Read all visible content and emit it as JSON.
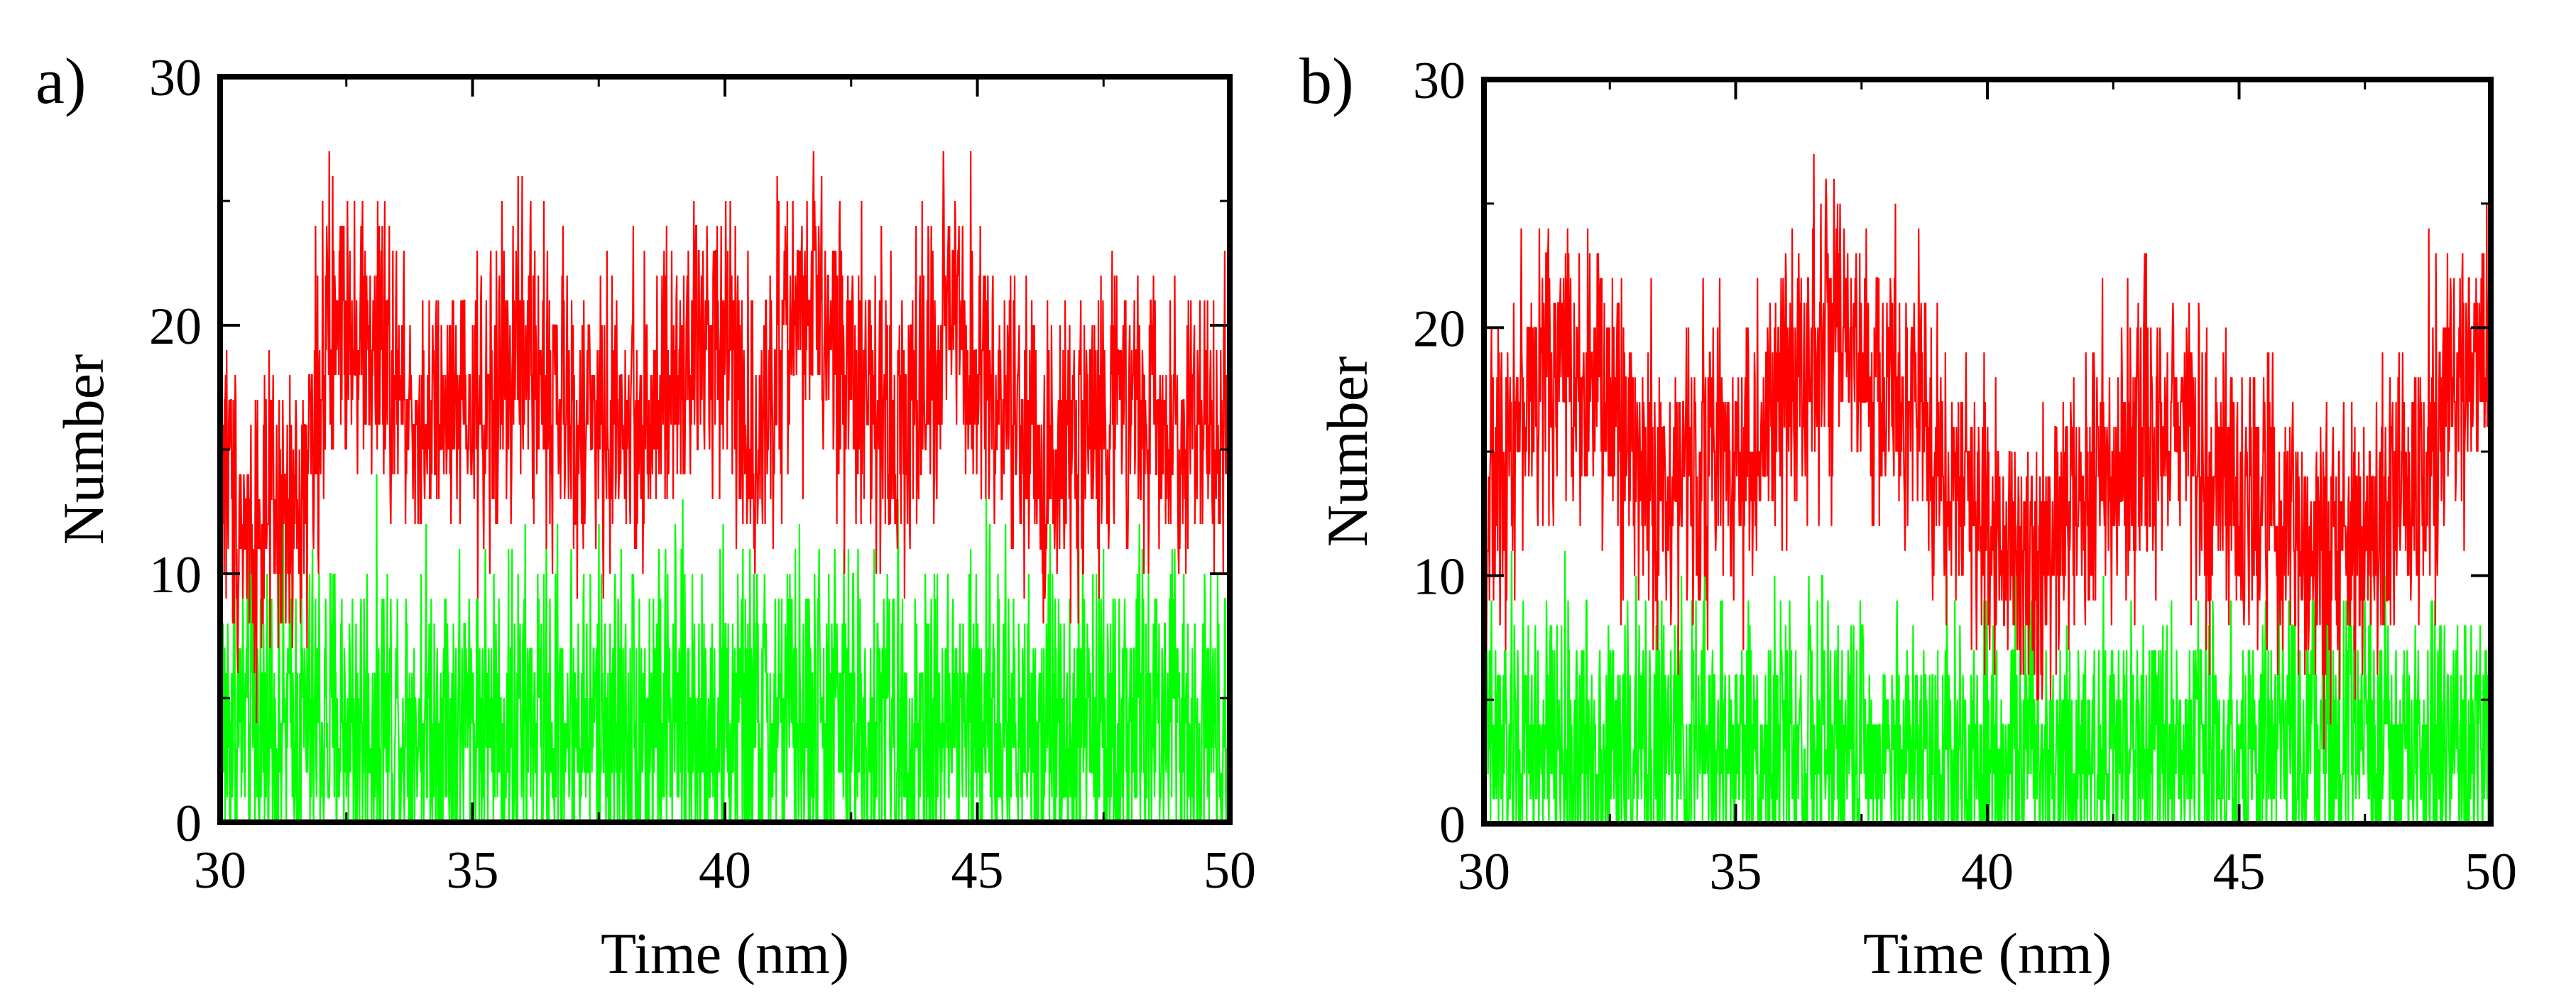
{
  "chart_data": [
    {
      "panel_label": "a)",
      "type": "line",
      "xlabel": "Time (nm)",
      "ylabel": "Number",
      "xlim": [
        30,
        50
      ],
      "ylim": [
        0,
        30
      ],
      "x_ticks": [
        "30",
        "35",
        "40",
        "45",
        "50"
      ],
      "y_ticks": [
        "0",
        "10",
        "20",
        "30"
      ],
      "grid": false,
      "legend": "none",
      "series": [
        {
          "name": "red series",
          "color": "#ff0000",
          "noise_amplitude": 3,
          "trend": [
            {
              "x": 30.0,
              "y": 15
            },
            {
              "x": 30.5,
              "y": 12
            },
            {
              "x": 31.5,
              "y": 12
            },
            {
              "x": 32.0,
              "y": 18
            },
            {
              "x": 32.5,
              "y": 21
            },
            {
              "x": 33.0,
              "y": 19
            },
            {
              "x": 34.0,
              "y": 16
            },
            {
              "x": 35.0,
              "y": 16
            },
            {
              "x": 36.0,
              "y": 19
            },
            {
              "x": 37.0,
              "y": 16
            },
            {
              "x": 38.0,
              "y": 16
            },
            {
              "x": 39.0,
              "y": 17
            },
            {
              "x": 40.0,
              "y": 21
            },
            {
              "x": 40.5,
              "y": 15
            },
            {
              "x": 41.5,
              "y": 21
            },
            {
              "x": 42.5,
              "y": 18
            },
            {
              "x": 43.5,
              "y": 16
            },
            {
              "x": 44.5,
              "y": 20
            },
            {
              "x": 45.5,
              "y": 16
            },
            {
              "x": 46.5,
              "y": 14
            },
            {
              "x": 47.5,
              "y": 17
            },
            {
              "x": 48.5,
              "y": 16
            },
            {
              "x": 49.5,
              "y": 15
            },
            {
              "x": 50.0,
              "y": 18
            }
          ]
        },
        {
          "name": "green series",
          "color": "#00ff00",
          "noise_amplitude": 3.5,
          "trend": [
            {
              "x": 30.0,
              "y": 4
            },
            {
              "x": 40.0,
              "y": 4
            },
            {
              "x": 50.0,
              "y": 4
            }
          ]
        }
      ]
    },
    {
      "panel_label": "b)",
      "type": "line",
      "xlabel": "Time (nm)",
      "ylabel": "Number",
      "xlim": [
        30,
        50
      ],
      "ylim": [
        0,
        30
      ],
      "x_ticks": [
        "30",
        "35",
        "40",
        "45",
        "50"
      ],
      "y_ticks": [
        "0",
        "10",
        "20",
        "30"
      ],
      "grid": false,
      "legend": "none",
      "series": [
        {
          "name": "red series",
          "color": "#ff0000",
          "noise_amplitude": 3,
          "trend": [
            {
              "x": 30.0,
              "y": 12
            },
            {
              "x": 30.5,
              "y": 16
            },
            {
              "x": 31.5,
              "y": 19
            },
            {
              "x": 32.5,
              "y": 17
            },
            {
              "x": 33.5,
              "y": 13
            },
            {
              "x": 34.5,
              "y": 15
            },
            {
              "x": 35.5,
              "y": 15
            },
            {
              "x": 36.5,
              "y": 20
            },
            {
              "x": 37.5,
              "y": 18
            },
            {
              "x": 38.5,
              "y": 17
            },
            {
              "x": 39.5,
              "y": 13
            },
            {
              "x": 40.5,
              "y": 12
            },
            {
              "x": 41.0,
              "y": 10
            },
            {
              "x": 42.0,
              "y": 14
            },
            {
              "x": 43.0,
              "y": 15
            },
            {
              "x": 44.0,
              "y": 17
            },
            {
              "x": 44.5,
              "y": 13
            },
            {
              "x": 45.5,
              "y": 13
            },
            {
              "x": 46.5,
              "y": 11
            },
            {
              "x": 47.5,
              "y": 11
            },
            {
              "x": 48.5,
              "y": 14
            },
            {
              "x": 49.5,
              "y": 18
            },
            {
              "x": 50.0,
              "y": 20
            }
          ]
        },
        {
          "name": "green series",
          "color": "#00ff00",
          "noise_amplitude": 3,
          "trend": [
            {
              "x": 30.0,
              "y": 3
            },
            {
              "x": 40.0,
              "y": 3
            },
            {
              "x": 50.0,
              "y": 3
            }
          ]
        }
      ]
    }
  ]
}
